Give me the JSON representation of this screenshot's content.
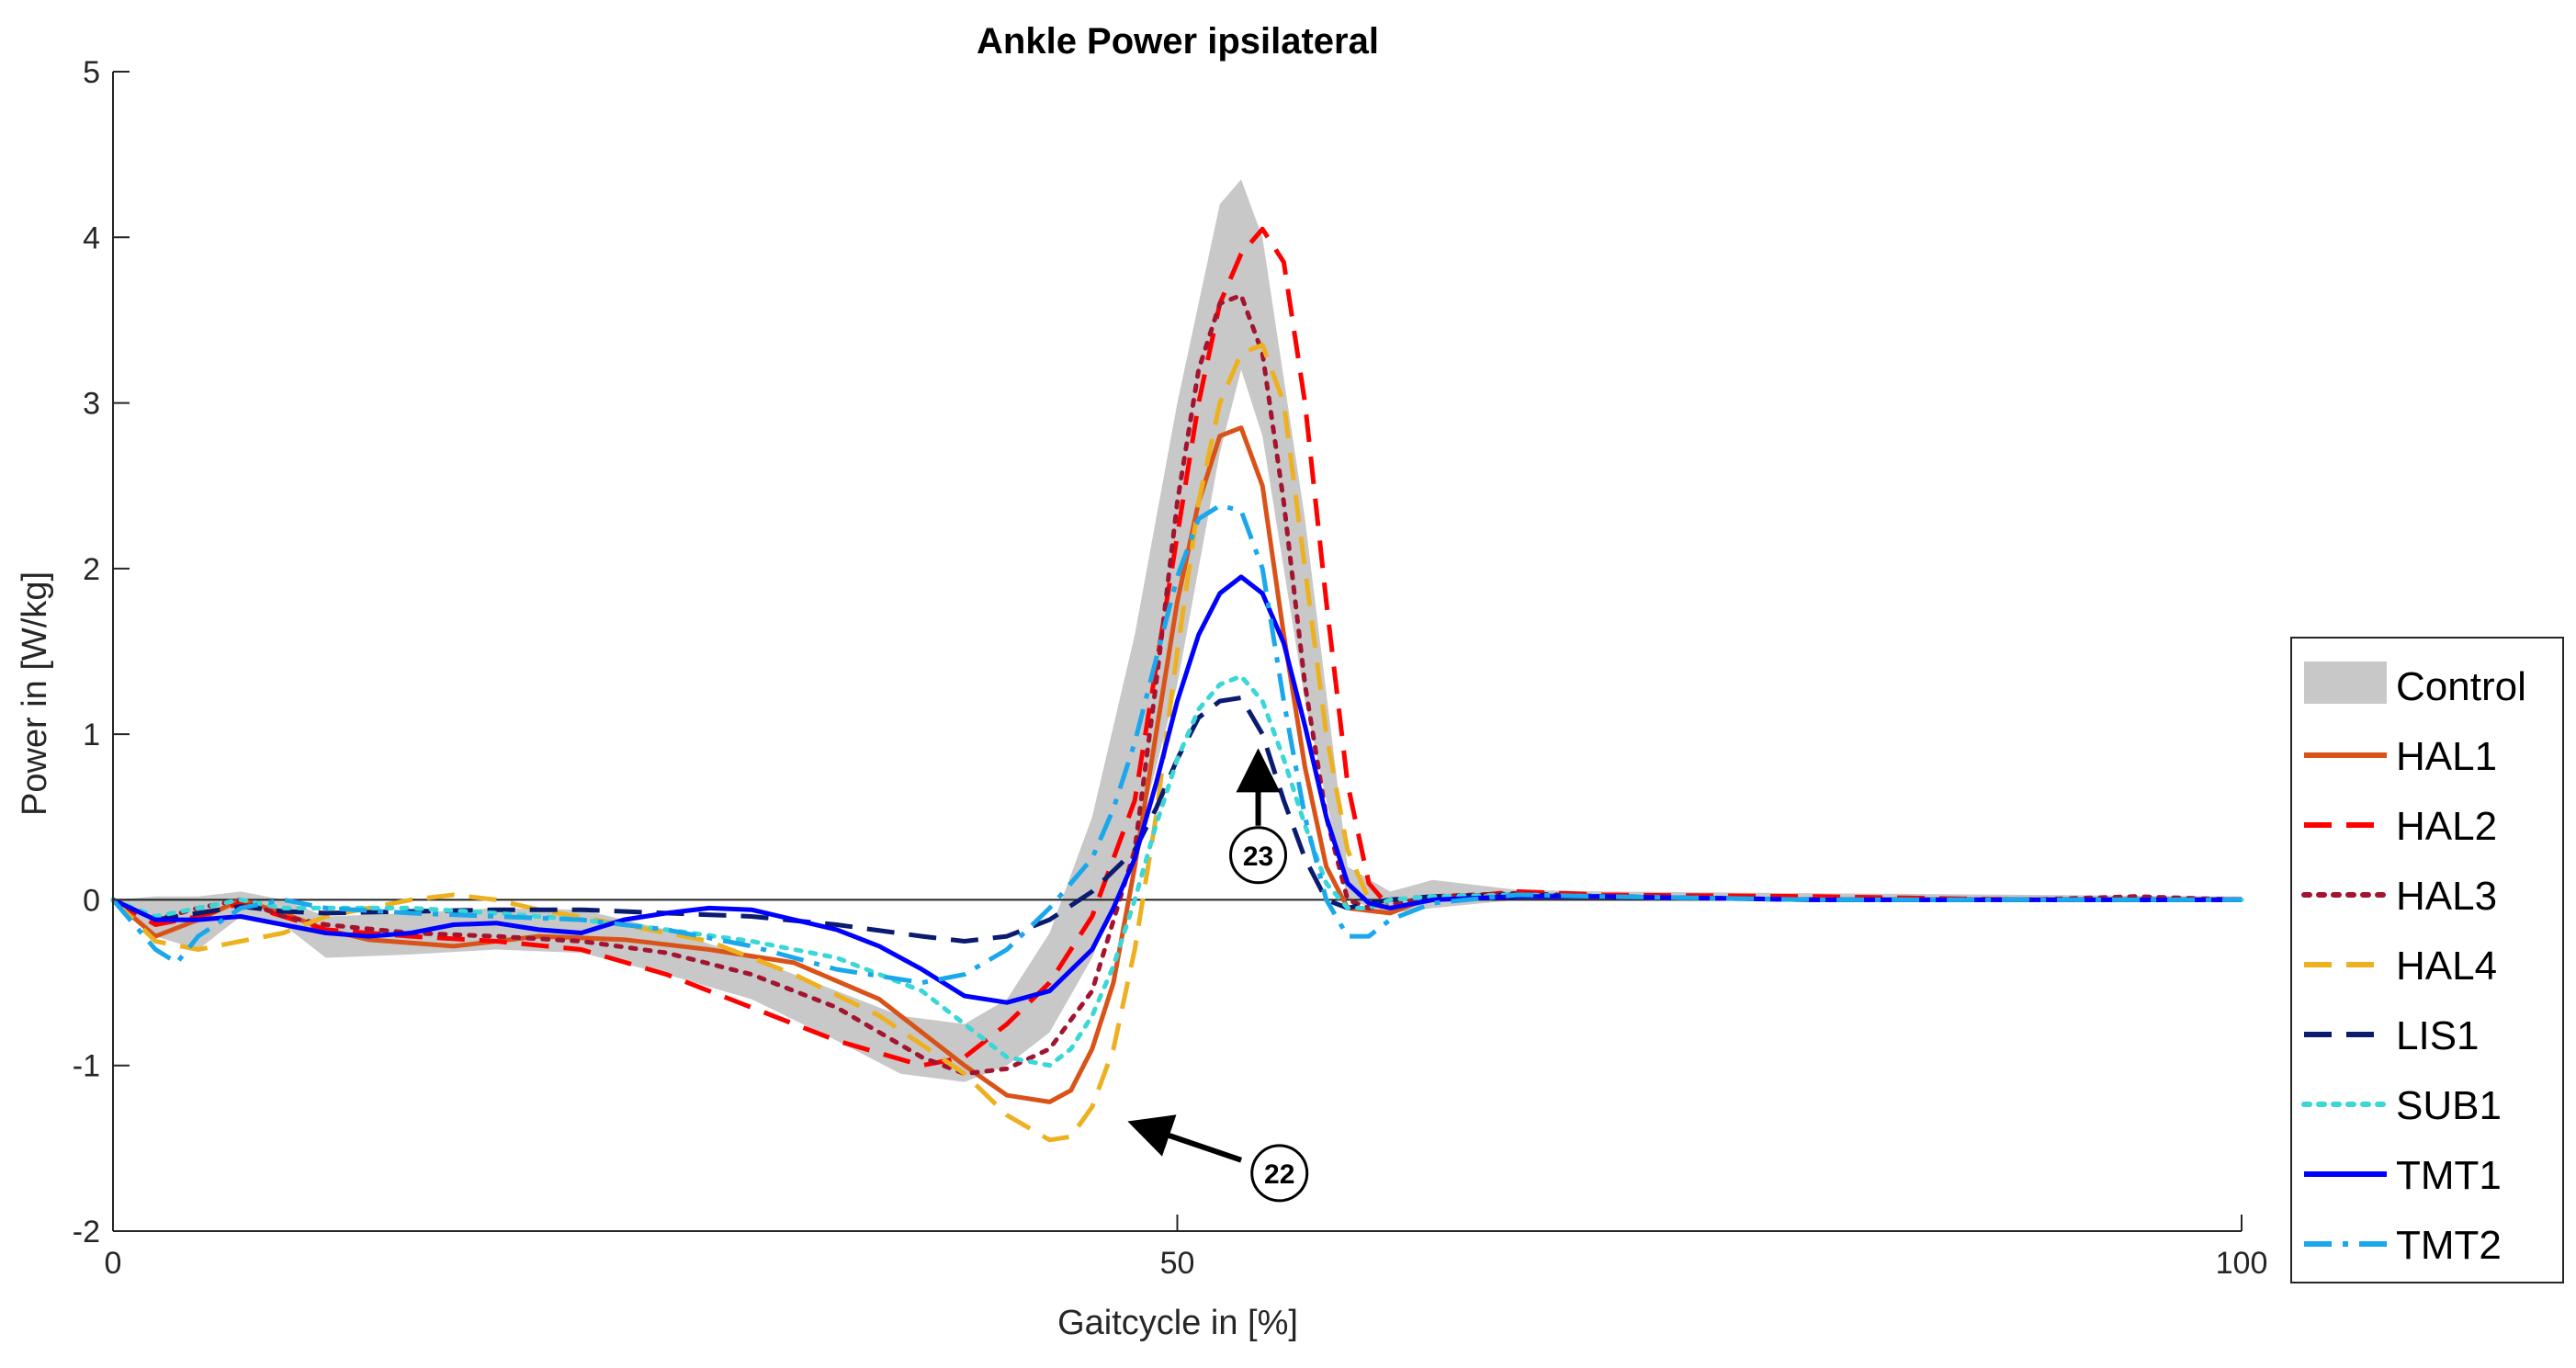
{
  "chart_data": {
    "type": "line",
    "title": "Ankle Power ipsilateral",
    "xlabel": "Gaitcycle in [%]",
    "ylabel": "Power in [W/kg]",
    "xlim": [
      0,
      100
    ],
    "ylim": [
      -2,
      5
    ],
    "xticks": [
      0,
      50,
      100
    ],
    "yticks": [
      -2,
      -1,
      0,
      1,
      2,
      3,
      4,
      5
    ],
    "grid": false,
    "legend_position": "bottom-right, outside plot",
    "control_band": {
      "name": "Control",
      "color": "#c8c8c8",
      "x": [
        0,
        2,
        4,
        6,
        8,
        10,
        14,
        18,
        22,
        26,
        30,
        34,
        37,
        40,
        42,
        44,
        46,
        48,
        50,
        52,
        53,
        54,
        56,
        58,
        60,
        62,
        66,
        70,
        80,
        90,
        100
      ],
      "lower": [
        0,
        -0.22,
        -0.3,
        -0.1,
        -0.15,
        -0.35,
        -0.33,
        -0.3,
        -0.32,
        -0.45,
        -0.6,
        -0.85,
        -1.05,
        -1.1,
        -1.0,
        -0.8,
        -0.35,
        0.3,
        1.3,
        2.7,
        3.2,
        2.8,
        1.2,
        0.0,
        -0.08,
        -0.05,
        0.0,
        0.0,
        0.0,
        0.0,
        0.0
      ],
      "upper": [
        0,
        0.02,
        0.02,
        0.05,
        0.0,
        -0.1,
        -0.08,
        -0.05,
        -0.06,
        -0.18,
        -0.35,
        -0.55,
        -0.7,
        -0.75,
        -0.6,
        -0.2,
        0.5,
        1.6,
        3.0,
        4.2,
        4.35,
        4.0,
        2.3,
        0.2,
        0.05,
        0.12,
        0.06,
        0.05,
        0.04,
        0.03,
        0.02
      ]
    },
    "series": [
      {
        "name": "HAL1",
        "color": "#d95319",
        "dash": "solid",
        "x": [
          0,
          2,
          4,
          6,
          8,
          10,
          12,
          16,
          20,
          24,
          28,
          32,
          36,
          40,
          42,
          44,
          45,
          46,
          47,
          48,
          49,
          50,
          51,
          52,
          53,
          54,
          55,
          56,
          57,
          58,
          60,
          62,
          66,
          70,
          80,
          90,
          100
        ],
        "y": [
          0,
          -0.22,
          -0.12,
          0.0,
          -0.08,
          -0.18,
          -0.24,
          -0.28,
          -0.22,
          -0.24,
          -0.3,
          -0.38,
          -0.6,
          -1.0,
          -1.18,
          -1.22,
          -1.15,
          -0.9,
          -0.5,
          0.2,
          1.0,
          1.8,
          2.4,
          2.8,
          2.85,
          2.5,
          1.6,
          0.8,
          0.2,
          -0.05,
          -0.08,
          0.02,
          0.03,
          0.02,
          0.0,
          0.0,
          0.0
        ]
      },
      {
        "name": "HAL2",
        "color": "#ff0000",
        "dash": "dashed",
        "x": [
          0,
          2,
          4,
          6,
          8,
          10,
          14,
          18,
          22,
          26,
          30,
          34,
          38,
          40,
          42,
          44,
          46,
          48,
          49,
          50,
          51,
          52,
          53,
          54,
          55,
          56,
          57,
          58,
          59,
          60,
          62,
          66,
          70,
          80,
          90,
          100
        ],
        "y": [
          0,
          -0.15,
          -0.1,
          -0.02,
          -0.1,
          -0.18,
          -0.22,
          -0.25,
          -0.3,
          -0.45,
          -0.65,
          -0.85,
          -1.0,
          -0.95,
          -0.75,
          -0.5,
          -0.1,
          0.6,
          1.4,
          2.2,
          3.0,
          3.6,
          3.9,
          4.05,
          3.85,
          3.0,
          1.8,
          0.7,
          0.1,
          -0.05,
          0.0,
          0.05,
          0.03,
          0.02,
          0.0,
          0.0
        ]
      },
      {
        "name": "HAL3",
        "color": "#a2142f",
        "dash": "dotted",
        "x": [
          0,
          2,
          4,
          6,
          8,
          10,
          14,
          18,
          22,
          26,
          30,
          34,
          38,
          40,
          42,
          44,
          46,
          48,
          49,
          50,
          51,
          52,
          53,
          54,
          55,
          56,
          57,
          58,
          59,
          60,
          62,
          66,
          70,
          80,
          90,
          95,
          100
        ],
        "y": [
          0,
          -0.12,
          -0.05,
          0.0,
          -0.1,
          -0.15,
          -0.2,
          -0.22,
          -0.25,
          -0.32,
          -0.45,
          -0.65,
          -0.95,
          -1.05,
          -1.02,
          -0.9,
          -0.55,
          0.3,
          1.3,
          2.4,
          3.2,
          3.6,
          3.65,
          3.3,
          2.4,
          1.3,
          0.5,
          0.0,
          -0.05,
          -0.03,
          0.02,
          0.04,
          0.02,
          0.0,
          0.0,
          0.02,
          0.0
        ]
      },
      {
        "name": "HAL4",
        "color": "#edb120",
        "dash": "dashed",
        "x": [
          0,
          2,
          4,
          6,
          8,
          10,
          14,
          16,
          18,
          20,
          24,
          28,
          32,
          36,
          40,
          42,
          44,
          45,
          46,
          47,
          48,
          49,
          50,
          51,
          52,
          53,
          54,
          55,
          56,
          57,
          58,
          59,
          60,
          62,
          66,
          70,
          80,
          90,
          100
        ],
        "y": [
          0,
          -0.25,
          -0.3,
          -0.25,
          -0.2,
          -0.1,
          0.0,
          0.03,
          0.0,
          -0.06,
          -0.15,
          -0.25,
          -0.45,
          -0.7,
          -1.05,
          -1.3,
          -1.45,
          -1.43,
          -1.25,
          -0.9,
          -0.3,
          0.5,
          1.5,
          2.4,
          3.0,
          3.3,
          3.35,
          3.0,
          2.0,
          1.0,
          0.3,
          0.0,
          -0.05,
          0.0,
          0.03,
          0.02,
          0.0,
          0.0,
          0.0
        ]
      },
      {
        "name": "LIS1",
        "color": "#0b1b6f",
        "dash": "dashed",
        "x": [
          0,
          2,
          4,
          6,
          8,
          10,
          14,
          18,
          22,
          26,
          30,
          34,
          38,
          40,
          42,
          44,
          46,
          48,
          49,
          50,
          51,
          52,
          53,
          54,
          55,
          56,
          57,
          58,
          59,
          60,
          62,
          66,
          70,
          80,
          90,
          100
        ],
        "y": [
          0,
          -0.12,
          -0.08,
          -0.04,
          -0.07,
          -0.08,
          -0.07,
          -0.06,
          -0.06,
          -0.08,
          -0.1,
          -0.15,
          -0.22,
          -0.25,
          -0.22,
          -0.12,
          0.05,
          0.3,
          0.55,
          0.85,
          1.1,
          1.2,
          1.22,
          1.0,
          0.6,
          0.25,
          0.0,
          -0.05,
          -0.02,
          0.0,
          0.02,
          0.03,
          0.02,
          0.0,
          0.0,
          0.0
        ]
      },
      {
        "name": "SUB1",
        "color": "#3bd6d6",
        "dash": "dotted",
        "x": [
          0,
          2,
          4,
          6,
          8,
          10,
          14,
          18,
          22,
          26,
          30,
          34,
          38,
          40,
          42,
          44,
          45,
          46,
          47,
          48,
          49,
          50,
          51,
          52,
          53,
          54,
          55,
          56,
          57,
          58,
          59,
          60,
          62,
          66,
          70,
          80,
          90,
          100
        ],
        "y": [
          0,
          -0.1,
          -0.05,
          0.0,
          -0.05,
          -0.05,
          -0.05,
          -0.08,
          -0.12,
          -0.18,
          -0.25,
          -0.35,
          -0.55,
          -0.75,
          -0.95,
          -1.0,
          -0.9,
          -0.7,
          -0.4,
          0.0,
          0.45,
          0.85,
          1.15,
          1.3,
          1.35,
          1.2,
          0.85,
          0.45,
          0.1,
          -0.05,
          -0.05,
          0.0,
          0.02,
          0.03,
          0.02,
          0.0,
          0.0,
          0.0
        ]
      },
      {
        "name": "TMT1",
        "color": "#0000ff",
        "dash": "solid",
        "x": [
          0,
          2,
          4,
          6,
          8,
          10,
          12,
          14,
          16,
          18,
          20,
          22,
          24,
          26,
          28,
          30,
          32,
          34,
          36,
          38,
          40,
          42,
          44,
          46,
          47,
          48,
          49,
          50,
          51,
          52,
          53,
          54,
          55,
          56,
          57,
          58,
          59,
          60,
          62,
          66,
          70,
          80,
          90,
          100
        ],
        "y": [
          0,
          -0.12,
          -0.12,
          -0.1,
          -0.15,
          -0.2,
          -0.22,
          -0.2,
          -0.15,
          -0.14,
          -0.18,
          -0.2,
          -0.12,
          -0.08,
          -0.05,
          -0.06,
          -0.12,
          -0.18,
          -0.28,
          -0.42,
          -0.58,
          -0.62,
          -0.55,
          -0.3,
          -0.05,
          0.25,
          0.7,
          1.2,
          1.6,
          1.85,
          1.95,
          1.85,
          1.55,
          1.05,
          0.5,
          0.1,
          -0.02,
          -0.05,
          0.0,
          0.02,
          0.02,
          0.0,
          0.0,
          0.0
        ]
      },
      {
        "name": "TMT2",
        "color": "#1aa7ec",
        "dash": "dashdot",
        "x": [
          0,
          2,
          3,
          4,
          6,
          8,
          10,
          14,
          18,
          22,
          26,
          30,
          34,
          38,
          40,
          42,
          44,
          46,
          47,
          48,
          49,
          50,
          51,
          52,
          53,
          54,
          55,
          56,
          57,
          58,
          59,
          60,
          62,
          66,
          70,
          80,
          90,
          100
        ],
        "y": [
          0,
          -0.3,
          -0.38,
          -0.22,
          -0.05,
          0.0,
          -0.05,
          -0.08,
          -0.1,
          -0.12,
          -0.18,
          -0.28,
          -0.42,
          -0.5,
          -0.45,
          -0.3,
          -0.05,
          0.25,
          0.55,
          0.95,
          1.45,
          1.95,
          2.3,
          2.38,
          2.35,
          2.0,
          1.2,
          0.5,
          0.0,
          -0.22,
          -0.22,
          -0.12,
          -0.02,
          0.03,
          0.02,
          0.0,
          0.0,
          0.0
        ]
      }
    ],
    "annotations": [
      {
        "label": "23",
        "x": 53.8,
        "y": 0.27,
        "arrow_to_y": 0.96
      },
      {
        "label": "22",
        "x": 54.8,
        "y": -1.65,
        "arrow_to": [
          47.5,
          -1.33
        ]
      }
    ]
  }
}
